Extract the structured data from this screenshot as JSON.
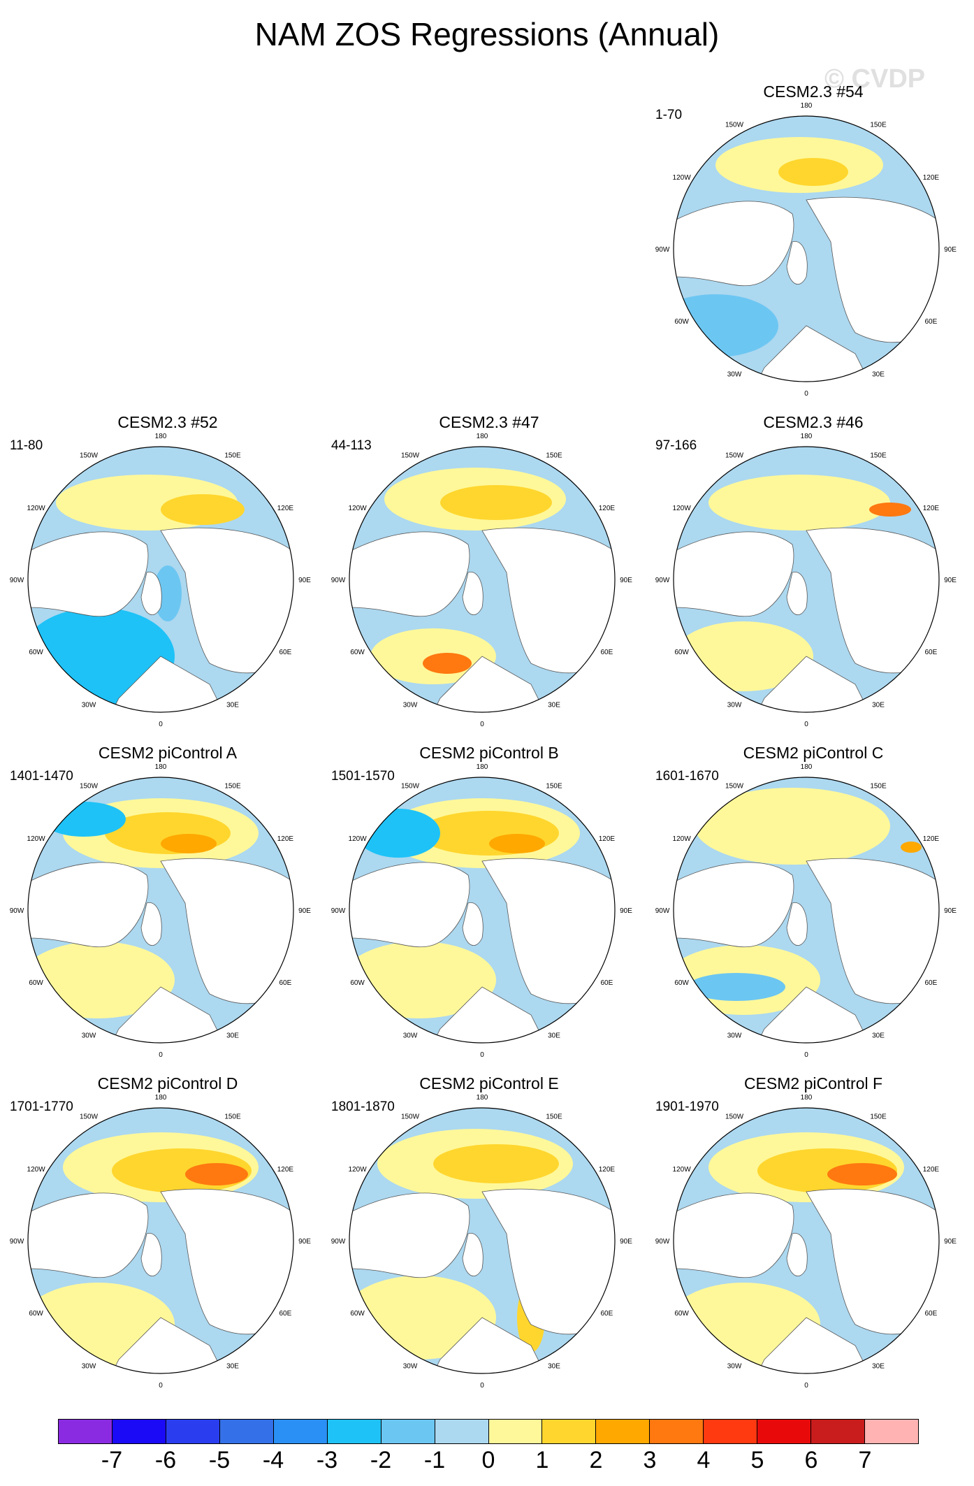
{
  "title": "NAM ZOS Regressions (Annual)",
  "watermark": "© CVDP",
  "longitude_labels": [
    "180",
    "150E",
    "120E",
    "90E",
    "60E",
    "30E",
    "0",
    "30W",
    "60W",
    "90W",
    "120W",
    "150W"
  ],
  "panels": [
    {
      "title": "CESM2.3 #54",
      "period": "1-70",
      "pattern": "a"
    },
    {
      "title": "CESM2.3 #52",
      "period": "11-80",
      "pattern": "b"
    },
    {
      "title": "CESM2.3 #47",
      "period": "44-113",
      "pattern": "c"
    },
    {
      "title": "CESM2.3 #46",
      "period": "97-166",
      "pattern": "d"
    },
    {
      "title": "CESM2 piControl A",
      "period": "1401-1470",
      "pattern": "e"
    },
    {
      "title": "CESM2 piControl B",
      "period": "1501-1570",
      "pattern": "f"
    },
    {
      "title": "CESM2 piControl C",
      "period": "1601-1670",
      "pattern": "g"
    },
    {
      "title": "CESM2 piControl D",
      "period": "1701-1770",
      "pattern": "h"
    },
    {
      "title": "CESM2 piControl E",
      "period": "1801-1870",
      "pattern": "i"
    },
    {
      "title": "CESM2 piControl F",
      "period": "1901-1970",
      "pattern": "j"
    }
  ],
  "colorbar": {
    "colors": [
      "#8a2be2",
      "#1a0af5",
      "#2a3ef0",
      "#3470e8",
      "#2b90f5",
      "#1ec2f7",
      "#6cc6f2",
      "#acd8f0",
      "#fff89a",
      "#ffd62e",
      "#ffa800",
      "#ff7810",
      "#ff3a10",
      "#e80a0a",
      "#c91c1c",
      "#ffb3b3"
    ],
    "labels": [
      "-7",
      "-6",
      "-5",
      "-4",
      "-3",
      "-2",
      "-1",
      "0",
      "1",
      "2",
      "3",
      "4",
      "5",
      "6",
      "7"
    ]
  }
}
